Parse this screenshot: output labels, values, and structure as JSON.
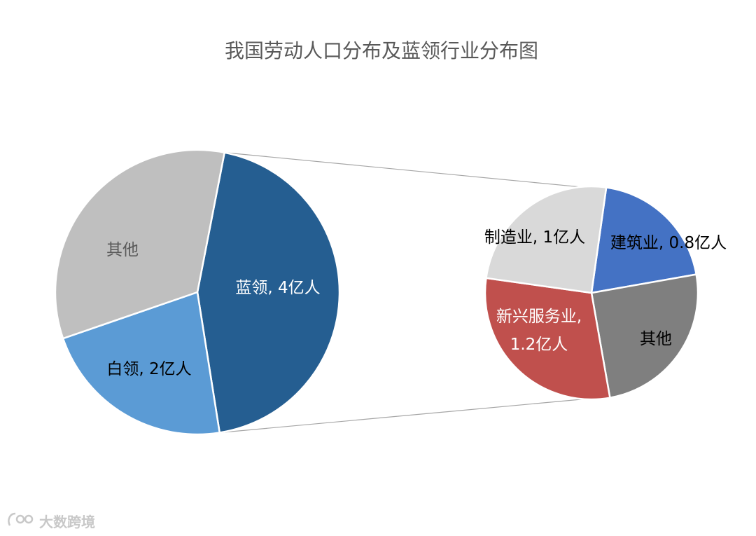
{
  "chart_data": [
    {
      "type": "pie",
      "title": "我国劳动人口分布及蓝领行业分布图",
      "unit": "亿人",
      "slices": [
        {
          "label": "蓝领, 4亿人",
          "category": "蓝领",
          "value": 4,
          "color": "#255e91",
          "text_color": "#ffffff"
        },
        {
          "label": "白领, 2亿人",
          "category": "白领",
          "value": 2,
          "color": "#5b9bd5",
          "text_color": "#000000"
        },
        {
          "label": "其他",
          "category": "其他",
          "value": 3,
          "color": "#bfbfbf",
          "text_color": "#595959"
        }
      ]
    },
    {
      "type": "pie",
      "title": "",
      "breakdown_of": "蓝领",
      "unit": "亿人",
      "slices": [
        {
          "label": "建筑业, 0.8亿人",
          "category": "建筑业",
          "value": 0.8,
          "color": "#4472c4",
          "text_color": "#000000"
        },
        {
          "label": "其他",
          "category": "其他",
          "value": 1.0,
          "color": "#7f7f7f",
          "text_color": "#000000"
        },
        {
          "label": "新兴服务业, 1.2亿人",
          "category": "新兴服务业",
          "value": 1.2,
          "color": "#c0504d",
          "text_color": "#ffffff"
        },
        {
          "label": "制造业, 1亿人",
          "category": "制造业",
          "value": 1,
          "color": "#d9d9d9",
          "text_color": "#000000"
        }
      ]
    }
  ],
  "watermark": {
    "text": "大数跨境",
    "icon": "brand-logo-icon"
  }
}
